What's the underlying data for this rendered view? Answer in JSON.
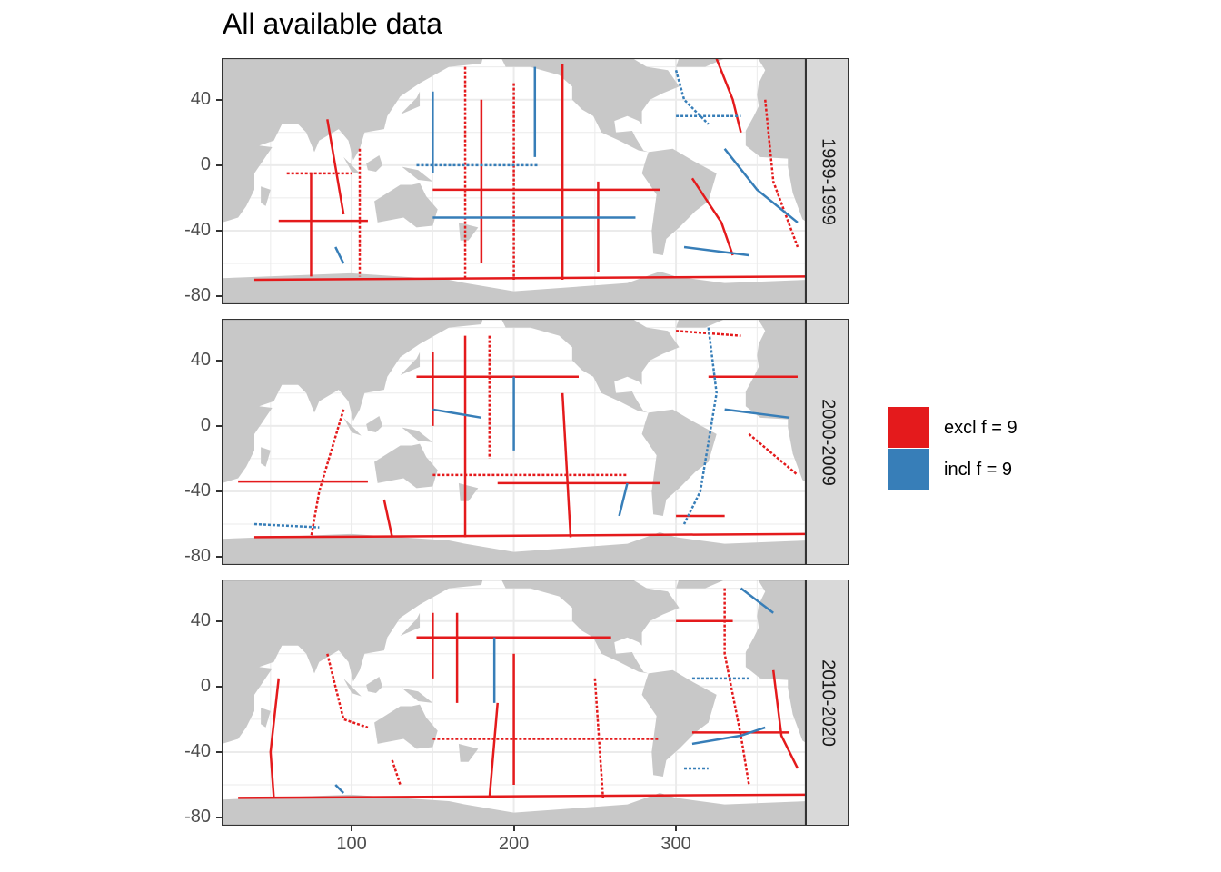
{
  "title": "All available data",
  "chart_data": {
    "type": "map",
    "title": "All available data",
    "xlim": [
      20,
      380
    ],
    "ylim": [
      -84,
      65
    ],
    "x_ticks": [
      100,
      200,
      300
    ],
    "y_ticks": [
      40,
      0,
      -40,
      -80
    ],
    "grid": true,
    "legend_placement": "right",
    "legend": [
      {
        "label": "excl f = 9",
        "color": "#E41A1C"
      },
      {
        "label": "incl f = 9",
        "color": "#377EB8"
      }
    ],
    "land_color": "#C8C8C8",
    "facets": [
      {
        "label": "1989-1999",
        "tracks": [
          {
            "c": "excl",
            "p": [
              [
                55,
                -34
              ],
              [
                110,
                -34
              ]
            ]
          },
          {
            "c": "excl",
            "p": [
              [
                105,
                10
              ],
              [
                105,
                -68
              ]
            ]
          },
          {
            "c": "excl",
            "p": [
              [
                75,
                -5
              ],
              [
                75,
                -68
              ]
            ]
          },
          {
            "c": "excl",
            "p": [
              [
                40,
                -70
              ],
              [
                380,
                -68
              ]
            ]
          },
          {
            "c": "excl",
            "p": [
              [
                170,
                60
              ],
              [
                170,
                -70
              ]
            ]
          },
          {
            "c": "excl",
            "p": [
              [
                150,
                -15
              ],
              [
                290,
                -15
              ]
            ]
          },
          {
            "c": "excl",
            "p": [
              [
                230,
                62
              ],
              [
                230,
                -70
              ]
            ]
          },
          {
            "c": "excl",
            "p": [
              [
                200,
                50
              ],
              [
                200,
                -70
              ]
            ]
          },
          {
            "c": "excl",
            "p": [
              [
                252,
                -10
              ],
              [
                252,
                -65
              ]
            ]
          },
          {
            "c": "excl",
            "p": [
              [
                85,
                28
              ],
              [
                95,
                -30
              ]
            ]
          },
          {
            "c": "excl",
            "p": [
              [
                60,
                -5
              ],
              [
                100,
                -5
              ]
            ]
          },
          {
            "c": "excl",
            "p": [
              [
                310,
                -8
              ],
              [
                328,
                -35
              ],
              [
                335,
                -55
              ]
            ]
          },
          {
            "c": "excl",
            "p": [
              [
                325,
                65
              ],
              [
                335,
                40
              ],
              [
                340,
                20
              ]
            ]
          },
          {
            "c": "excl",
            "p": [
              [
                355,
                40
              ],
              [
                360,
                -10
              ],
              [
                375,
                -50
              ]
            ]
          },
          {
            "c": "excl",
            "p": [
              [
                180,
                40
              ],
              [
                180,
                -60
              ]
            ]
          },
          {
            "c": "incl",
            "p": [
              [
                150,
                45
              ],
              [
                150,
                -5
              ]
            ]
          },
          {
            "c": "incl",
            "p": [
              [
                140,
                0
              ],
              [
                215,
                0
              ]
            ]
          },
          {
            "c": "incl",
            "p": [
              [
                150,
                -32
              ],
              [
                275,
                -32
              ]
            ]
          },
          {
            "c": "incl",
            "p": [
              [
                213,
                60
              ],
              [
                213,
                5
              ]
            ]
          },
          {
            "c": "incl",
            "p": [
              [
                300,
                58
              ],
              [
                305,
                40
              ],
              [
                320,
                25
              ]
            ]
          },
          {
            "c": "incl",
            "p": [
              [
                305,
                -50
              ],
              [
                345,
                -55
              ]
            ]
          },
          {
            "c": "incl",
            "p": [
              [
                330,
                10
              ],
              [
                350,
                -15
              ],
              [
                375,
                -35
              ]
            ]
          },
          {
            "c": "incl",
            "p": [
              [
                300,
                30
              ],
              [
                340,
                30
              ]
            ]
          },
          {
            "c": "incl",
            "p": [
              [
                90,
                -50
              ],
              [
                95,
                -60
              ]
            ]
          }
        ]
      },
      {
        "label": "2000-2009",
        "tracks": [
          {
            "c": "excl",
            "p": [
              [
                30,
                -34
              ],
              [
                110,
                -34
              ]
            ]
          },
          {
            "c": "excl",
            "p": [
              [
                95,
                10
              ],
              [
                80,
                -40
              ],
              [
                75,
                -68
              ]
            ]
          },
          {
            "c": "excl",
            "p": [
              [
                170,
                55
              ],
              [
                170,
                -68
              ]
            ]
          },
          {
            "c": "excl",
            "p": [
              [
                140,
                30
              ],
              [
                240,
                30
              ]
            ]
          },
          {
            "c": "excl",
            "p": [
              [
                150,
                -30
              ],
              [
                270,
                -30
              ]
            ]
          },
          {
            "c": "excl",
            "p": [
              [
                190,
                -35
              ],
              [
                290,
                -35
              ]
            ]
          },
          {
            "c": "excl",
            "p": [
              [
                150,
                45
              ],
              [
                150,
                0
              ]
            ]
          },
          {
            "c": "excl",
            "p": [
              [
                185,
                55
              ],
              [
                185,
                -20
              ]
            ]
          },
          {
            "c": "excl",
            "p": [
              [
                230,
                20
              ],
              [
                235,
                -68
              ]
            ]
          },
          {
            "c": "excl",
            "p": [
              [
                40,
                -68
              ],
              [
                380,
                -66
              ]
            ]
          },
          {
            "c": "excl",
            "p": [
              [
                300,
                58
              ],
              [
                340,
                55
              ]
            ]
          },
          {
            "c": "excl",
            "p": [
              [
                320,
                30
              ],
              [
                375,
                30
              ]
            ]
          },
          {
            "c": "excl",
            "p": [
              [
                300,
                -55
              ],
              [
                330,
                -55
              ]
            ]
          },
          {
            "c": "excl",
            "p": [
              [
                345,
                -5
              ],
              [
                375,
                -30
              ]
            ]
          },
          {
            "c": "excl",
            "p": [
              [
                120,
                -45
              ],
              [
                125,
                -68
              ]
            ]
          },
          {
            "c": "incl",
            "p": [
              [
                150,
                10
              ],
              [
                180,
                5
              ]
            ]
          },
          {
            "c": "incl",
            "p": [
              [
                320,
                60
              ],
              [
                325,
                20
              ],
              [
                315,
                -40
              ],
              [
                305,
                -60
              ]
            ]
          },
          {
            "c": "incl",
            "p": [
              [
                330,
                10
              ],
              [
                370,
                5
              ]
            ]
          },
          {
            "c": "incl",
            "p": [
              [
                270,
                -35
              ],
              [
                265,
                -55
              ]
            ]
          },
          {
            "c": "incl",
            "p": [
              [
                40,
                -60
              ],
              [
                80,
                -62
              ]
            ]
          },
          {
            "c": "incl",
            "p": [
              [
                200,
                30
              ],
              [
                200,
                -15
              ]
            ]
          }
        ]
      },
      {
        "label": "2010-2020",
        "tracks": [
          {
            "c": "excl",
            "p": [
              [
                55,
                5
              ],
              [
                50,
                -40
              ],
              [
                52,
                -68
              ]
            ]
          },
          {
            "c": "excl",
            "p": [
              [
                85,
                20
              ],
              [
                95,
                -20
              ],
              [
                110,
                -25
              ]
            ]
          },
          {
            "c": "excl",
            "p": [
              [
                150,
                45
              ],
              [
                150,
                5
              ]
            ]
          },
          {
            "c": "excl",
            "p": [
              [
                140,
                30
              ],
              [
                260,
                30
              ]
            ]
          },
          {
            "c": "excl",
            "p": [
              [
                150,
                -32
              ],
              [
                290,
                -32
              ]
            ]
          },
          {
            "c": "excl",
            "p": [
              [
                165,
                45
              ],
              [
                165,
                -10
              ]
            ]
          },
          {
            "c": "excl",
            "p": [
              [
                190,
                -10
              ],
              [
                185,
                -68
              ]
            ]
          },
          {
            "c": "excl",
            "p": [
              [
                250,
                5
              ],
              [
                255,
                -68
              ]
            ]
          },
          {
            "c": "excl",
            "p": [
              [
                30,
                -68
              ],
              [
                380,
                -66
              ]
            ]
          },
          {
            "c": "excl",
            "p": [
              [
                300,
                40
              ],
              [
                335,
                40
              ]
            ]
          },
          {
            "c": "excl",
            "p": [
              [
                330,
                60
              ],
              [
                330,
                20
              ],
              [
                340,
                -30
              ],
              [
                345,
                -60
              ]
            ]
          },
          {
            "c": "excl",
            "p": [
              [
                310,
                -28
              ],
              [
                370,
                -28
              ]
            ]
          },
          {
            "c": "excl",
            "p": [
              [
                360,
                10
              ],
              [
                365,
                -30
              ],
              [
                375,
                -50
              ]
            ]
          },
          {
            "c": "excl",
            "p": [
              [
                125,
                -45
              ],
              [
                130,
                -60
              ]
            ]
          },
          {
            "c": "excl",
            "p": [
              [
                200,
                20
              ],
              [
                200,
                -60
              ]
            ]
          },
          {
            "c": "incl",
            "p": [
              [
                310,
                -35
              ],
              [
                340,
                -30
              ],
              [
                355,
                -25
              ]
            ]
          },
          {
            "c": "incl",
            "p": [
              [
                305,
                -50
              ],
              [
                320,
                -50
              ]
            ]
          },
          {
            "c": "incl",
            "p": [
              [
                90,
                -60
              ],
              [
                95,
                -65
              ]
            ]
          },
          {
            "c": "incl",
            "p": [
              [
                340,
                60
              ],
              [
                360,
                45
              ]
            ]
          },
          {
            "c": "incl",
            "p": [
              [
                310,
                5
              ],
              [
                345,
                5
              ]
            ]
          },
          {
            "c": "incl",
            "p": [
              [
                188,
                30
              ],
              [
                188,
                -10
              ]
            ]
          }
        ]
      }
    ]
  }
}
